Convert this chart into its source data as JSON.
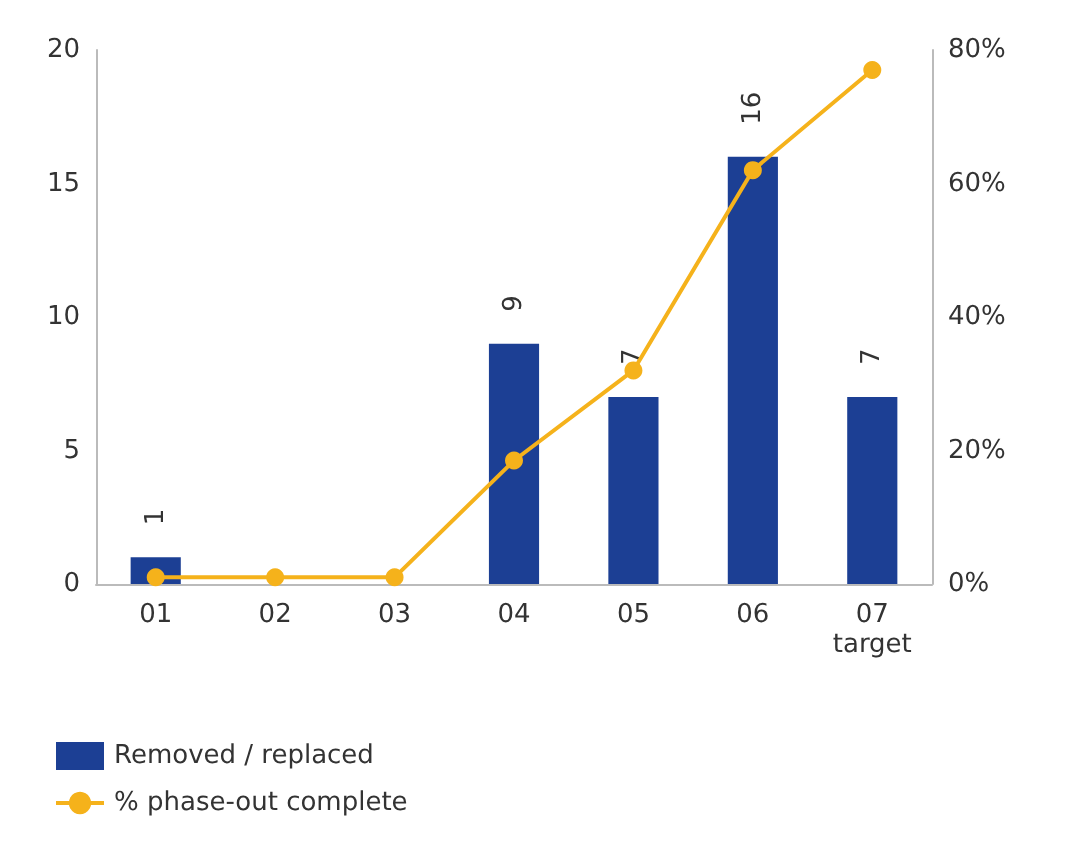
{
  "chart_data": {
    "type": "bar",
    "categories": [
      "01",
      "02",
      "03",
      "04",
      "05",
      "06",
      "07\ntarget"
    ],
    "series": [
      {
        "name": "Removed / replaced",
        "color": "#1c3f94",
        "values": [
          1,
          null,
          null,
          9,
          7,
          16,
          7
        ],
        "value_labels": [
          "1",
          null,
          null,
          "9",
          "7",
          "16",
          "7"
        ]
      },
      {
        "name": "% phase-out complete",
        "type": "line",
        "axis": "y2",
        "color": "#f5b21b",
        "marker": "circle",
        "values": [
          1,
          1,
          1,
          18.5,
          32,
          62,
          77
        ]
      }
    ],
    "ylim": [
      0,
      20
    ],
    "yticks": [
      0,
      5,
      10,
      15,
      20
    ],
    "y2lim": [
      0,
      80
    ],
    "y2ticks": [
      {
        "value": 0,
        "label": "0%"
      },
      {
        "value": 20,
        "label": "20%"
      },
      {
        "value": 40,
        "label": "40%"
      },
      {
        "value": 60,
        "label": "60%"
      },
      {
        "value": 80,
        "label": "80%"
      }
    ],
    "grid": false,
    "legend": "bottom left"
  }
}
